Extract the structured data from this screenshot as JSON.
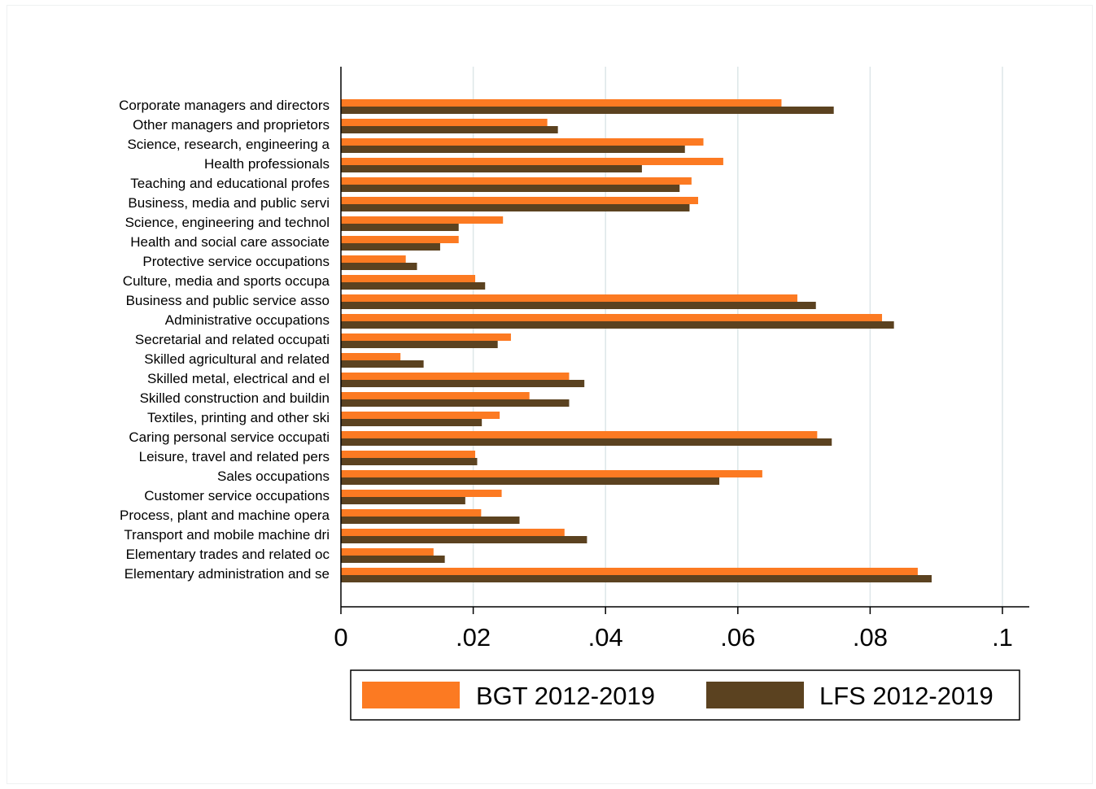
{
  "chart_data": {
    "type": "bar",
    "orientation": "horizontal",
    "title": "",
    "xlabel": "",
    "ylabel": "",
    "xlim": [
      0,
      0.1
    ],
    "x_ticks": [
      0,
      0.02,
      0.04,
      0.06,
      0.08,
      0.1
    ],
    "x_tick_labels": [
      "0",
      ".02",
      ".04",
      ".06",
      ".08",
      ".1"
    ],
    "grid": "vertical",
    "legend_position": "bottom",
    "categories": [
      "Corporate managers and directors",
      "Other managers and proprietors",
      "Science, research, engineering a",
      "Health professionals",
      "Teaching  and educational profes",
      "Business, media and public servi",
      "Science, engineering and technol",
      "Health and social care associate",
      "Protective service occupations",
      "Culture, media and sports occupa",
      "Business and public service asso",
      "Administrative occupations",
      "Secretarial and related occupati",
      "Skilled agricultural and related",
      "Skilled metal, electrical and el",
      "Skilled construction and buildin",
      "Textiles, printing and other ski",
      "Caring personal service occupati",
      "Leisure, travel and related pers",
      "Sales occupations",
      "Customer service occupations",
      "Process, plant and machine opera",
      "Transport and mobile machine dri",
      "Elementary trades and related oc",
      "Elementary administration and se"
    ],
    "series": [
      {
        "name": "BGT 2012-2019",
        "color": "#fc7a22",
        "values": [
          0.0666,
          0.0312,
          0.0548,
          0.0578,
          0.053,
          0.054,
          0.0245,
          0.0178,
          0.0098,
          0.0203,
          0.069,
          0.0818,
          0.0257,
          0.009,
          0.0345,
          0.0285,
          0.024,
          0.072,
          0.0203,
          0.0637,
          0.0243,
          0.0212,
          0.0338,
          0.014,
          0.0872
        ]
      },
      {
        "name": "LFS 2012-2019",
        "color": "#5b4220",
        "values": [
          0.0745,
          0.0328,
          0.052,
          0.0455,
          0.0512,
          0.0527,
          0.0178,
          0.015,
          0.0115,
          0.0218,
          0.0718,
          0.0836,
          0.0237,
          0.0125,
          0.0368,
          0.0345,
          0.0213,
          0.0742,
          0.0206,
          0.0572,
          0.0188,
          0.027,
          0.0372,
          0.0157,
          0.0893
        ]
      }
    ]
  },
  "colors": {
    "grid": "#dde6e8",
    "axis": "#000000"
  }
}
